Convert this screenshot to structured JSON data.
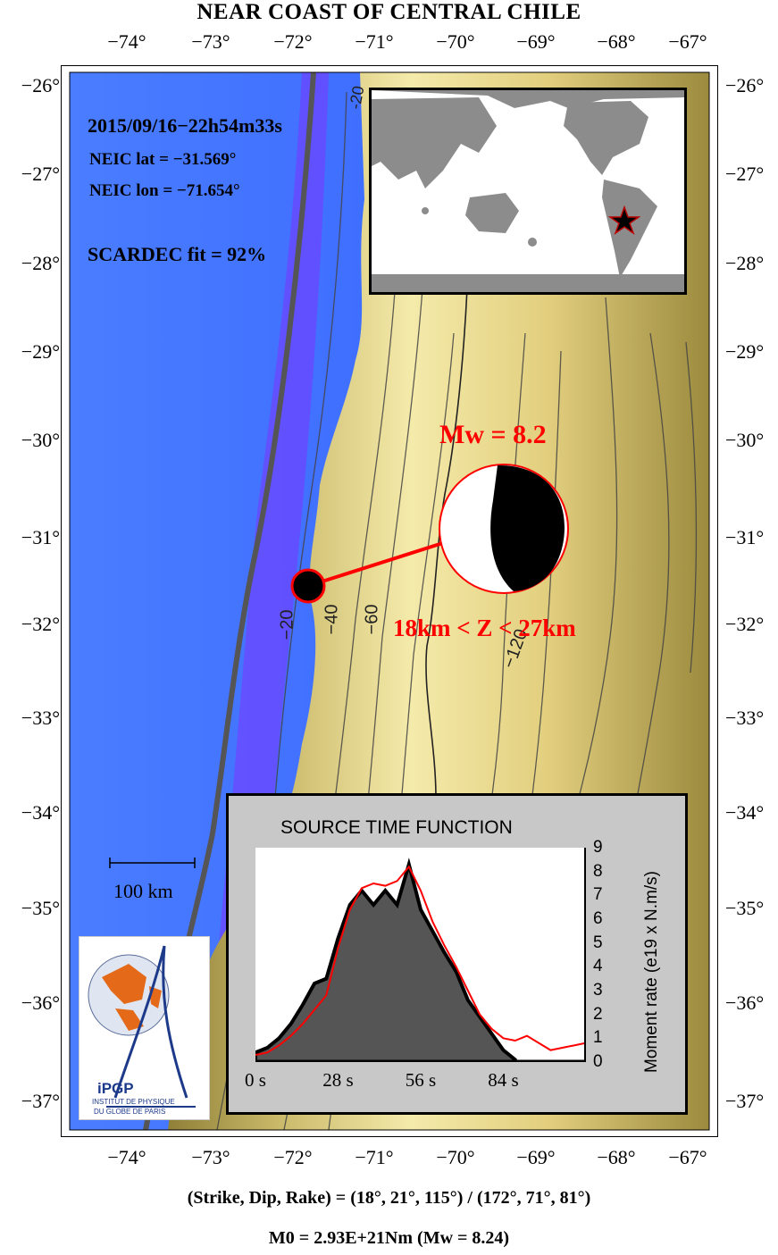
{
  "title": "NEAR COAST OF CENTRAL CHILE",
  "lon_ticks": [
    "−74°",
    "−73°",
    "−72°",
    "−71°",
    "−70°",
    "−69°",
    "−68°",
    "−67°"
  ],
  "lat_ticks": [
    "−26°",
    "−27°",
    "−28°",
    "−29°",
    "−30°",
    "−31°",
    "−32°",
    "−33°",
    "−34°",
    "−35°",
    "−36°",
    "−37°"
  ],
  "event": {
    "datetime": "2015/09/16−22h54m33s",
    "lat": "NEIC lat  = −31.569°",
    "lon": "NEIC lon = −71.654°",
    "fit": "SCARDEC fit = 92%",
    "magnitude": "Mw = 8.2",
    "depth": "18km < Z <  27km"
  },
  "contours": [
    "−20",
    "−20",
    "−40",
    "−60",
    "−120"
  ],
  "scale_bar": "100 km",
  "logo": {
    "name": "iPGP",
    "line1": "INSTITUT DE PHYSIQUE",
    "line2": "DU GLOBE DE PARIS"
  },
  "stf": {
    "title": "SOURCE TIME FUNCTION",
    "ylabel": "Moment rate (e19 x N.m/s)",
    "xticks": [
      "0 s",
      "28 s",
      "56 s",
      "84 s"
    ],
    "yticks": [
      "0",
      "1",
      "2",
      "3",
      "4",
      "5",
      "6",
      "7",
      "8",
      "9"
    ]
  },
  "footer": {
    "planes": "(Strike, Dip, Rake) = (18°, 21°, 115°) / (172°, 71°, 81°)",
    "moment": "M0 = 2.93E+21Nm  (Mw = 8.24)"
  },
  "colors": {
    "ocean_deep": "#3f4fff",
    "ocean_shallow": "#6fb8ff",
    "land_low": "#f2e6a4",
    "land_high": "#8b7a34",
    "accent": "#ff0000"
  },
  "chart_data": {
    "type": "line",
    "title": "SOURCE TIME FUNCTION",
    "xlabel": "",
    "ylabel": "Moment rate (e19 x N.m/s)",
    "xlim": [
      0,
      112
    ],
    "ylim": [
      0,
      9
    ],
    "series": [
      {
        "values_x": [
          0,
          4,
          8,
          12,
          16,
          20,
          24,
          28,
          32,
          36,
          40,
          44,
          48,
          52,
          56,
          60,
          64,
          68,
          72,
          76,
          80,
          84,
          88
        ],
        "values_y": [
          0.4,
          0.6,
          1.0,
          1.6,
          2.4,
          3.3,
          3.5,
          5.2,
          6.6,
          7.2,
          6.6,
          7.2,
          6.6,
          8.3,
          6.4,
          5.5,
          4.6,
          3.8,
          2.6,
          1.9,
          1.2,
          0.5,
          0.1
        ]
      },
      {
        "values_x": [
          0,
          4,
          8,
          12,
          16,
          20,
          24,
          28,
          32,
          36,
          40,
          44,
          48,
          52,
          56,
          60,
          64,
          68,
          72,
          76,
          80,
          84,
          88,
          92,
          96,
          100,
          104,
          108,
          112
        ],
        "values_y": [
          0.3,
          0.4,
          0.7,
          1.1,
          1.6,
          2.2,
          2.8,
          4.8,
          6.4,
          7.3,
          7.5,
          7.4,
          7.6,
          8.2,
          7.2,
          5.9,
          4.9,
          4.0,
          3.0,
          2.0,
          1.4,
          1.0,
          0.9,
          1.1,
          0.8,
          0.5,
          0.6,
          0.7,
          0.8
        ]
      }
    ]
  }
}
